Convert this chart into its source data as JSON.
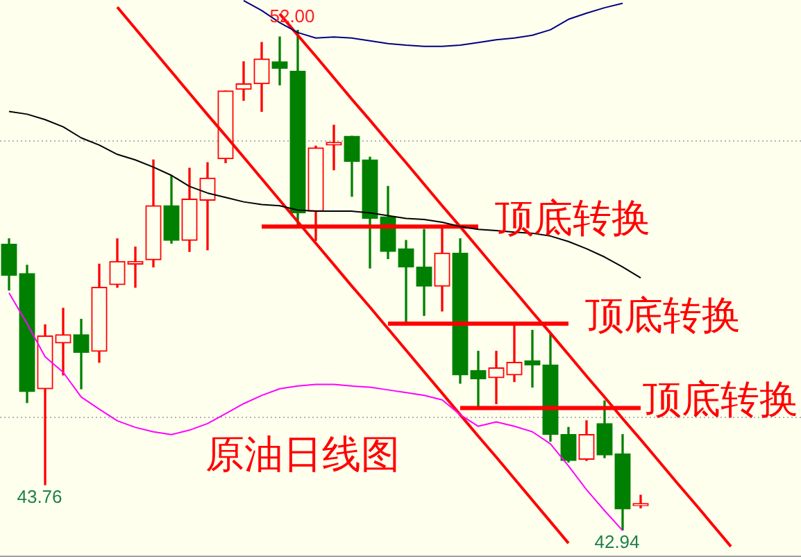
{
  "chart_data": {
    "type": "candlestick",
    "title": "原油日线图",
    "categories": [
      null,
      null,
      null,
      null,
      null,
      null,
      null,
      null,
      null,
      null,
      null,
      null,
      null,
      null,
      null,
      null,
      null,
      null,
      null,
      null,
      null,
      null,
      null,
      null,
      null,
      null,
      null,
      null,
      null,
      null,
      null,
      null,
      null,
      null,
      null,
      null,
      null,
      null,
      null,
      null,
      null,
      null,
      null,
      null
    ],
    "ohlc": [
      [
        48.12,
        48.22,
        47.29,
        47.56
      ],
      [
        47.59,
        47.74,
        45.25,
        45.45
      ],
      [
        45.5,
        46.66,
        43.76,
        46.46
      ],
      [
        46.33,
        46.96,
        45.75,
        46.48
      ],
      [
        46.48,
        46.76,
        45.5,
        46.16
      ],
      [
        46.18,
        47.76,
        45.98,
        47.34
      ],
      [
        47.39,
        48.22,
        47.34,
        47.81
      ],
      [
        47.76,
        48.07,
        47.34,
        47.81
      ],
      [
        47.84,
        49.65,
        47.71,
        48.82
      ],
      [
        48.82,
        49.37,
        48.14,
        48.19
      ],
      [
        48.19,
        49.5,
        47.99,
        48.94
      ],
      [
        48.92,
        49.6,
        48.02,
        49.32
      ],
      [
        49.67,
        50.9,
        49.6,
        50.9
      ],
      [
        50.93,
        51.43,
        50.73,
        51.03
      ],
      [
        51.03,
        51.78,
        50.53,
        51.48
      ],
      [
        51.43,
        51.88,
        51.01,
        51.31
      ],
      [
        51.26,
        52.0,
        48.44,
        48.69
      ],
      [
        48.72,
        49.9,
        48.19,
        49.87
      ],
      [
        49.92,
        50.28,
        49.47,
        49.97
      ],
      [
        50.08,
        50.08,
        48.99,
        49.62
      ],
      [
        49.65,
        49.7,
        47.69,
        48.59
      ],
      [
        48.62,
        49.17,
        47.86,
        47.99
      ],
      [
        48.04,
        48.19,
        46.71,
        47.71
      ],
      [
        47.71,
        48.39,
        46.83,
        47.36
      ],
      [
        47.36,
        48.44,
        46.91,
        47.96
      ],
      [
        47.96,
        48.22,
        45.6,
        45.75
      ],
      [
        45.83,
        46.18,
        45.18,
        45.68
      ],
      [
        45.7,
        46.18,
        45.23,
        45.88
      ],
      [
        45.75,
        46.68,
        45.63,
        45.98
      ],
      [
        46.01,
        46.56,
        45.53,
        45.93
      ],
      [
        45.93,
        46.48,
        44.55,
        44.67
      ],
      [
        44.67,
        44.8,
        44.17,
        44.2
      ],
      [
        44.22,
        44.92,
        44.2,
        44.67
      ],
      [
        44.87,
        45.28,
        44.25,
        44.3
      ],
      [
        44.32,
        44.67,
        42.94,
        43.32
      ],
      [
        43.38,
        43.57,
        43.34,
        43.42
      ],
      null,
      null,
      null,
      null,
      null,
      null,
      null,
      null
    ],
    "colors": [
      "#008000",
      "#008000",
      "#ff0000",
      "#ff0000",
      "#008000",
      "#ff0000",
      "#ff0000",
      "#ff0000",
      "#ff0000",
      "#008000",
      "#ff0000",
      "#ff0000",
      "#ff0000",
      "#ff0000",
      "#ff0000",
      "#008000",
      "#008000",
      "#ff0000",
      "#ff0000",
      "#008000",
      "#008000",
      "#008000",
      "#008000",
      "#008000",
      "#ff0000",
      "#008000",
      "#008000",
      "#ff0000",
      "#ff0000",
      "#008000",
      "#008000",
      "#008000",
      "#ff0000",
      "#008000",
      "#008000",
      "#ff0000",
      null,
      null,
      null,
      null,
      null,
      null,
      null,
      null
    ],
    "series": [
      {
        "type": "line",
        "color": "#000000",
        "values": [
          50.53,
          50.48,
          50.38,
          50.25,
          50.05,
          49.92,
          49.75,
          49.65,
          49.52,
          49.37,
          49.17,
          49.05,
          48.97,
          48.89,
          48.84,
          48.82,
          48.74,
          48.72,
          48.72,
          48.72,
          48.69,
          48.64,
          48.59,
          48.57,
          48.52,
          48.44,
          48.39,
          48.37,
          48.34,
          48.32,
          48.27,
          48.17,
          48.04,
          47.89,
          47.71,
          47.51,
          null,
          null,
          null,
          null,
          null,
          null,
          null,
          null
        ]
      },
      {
        "type": "line",
        "color": "#000080",
        "values": [
          null,
          null,
          null,
          null,
          null,
          null,
          null,
          null,
          null,
          null,
          null,
          null,
          null,
          52.54,
          52.36,
          52.14,
          51.96,
          51.86,
          51.88,
          51.86,
          51.81,
          51.76,
          51.73,
          51.71,
          51.71,
          51.73,
          51.78,
          51.83,
          51.86,
          51.91,
          52.01,
          52.2,
          52.31,
          52.41,
          52.49,
          null,
          null,
          null,
          null,
          null,
          null,
          null,
          null,
          null
        ]
      },
      {
        "type": "line",
        "color": "#ff00ff",
        "values": [
          47.24,
          46.68,
          46.08,
          45.8,
          45.35,
          45.13,
          44.92,
          44.8,
          44.72,
          44.67,
          44.75,
          44.87,
          45.05,
          45.23,
          45.38,
          45.5,
          45.55,
          45.58,
          45.58,
          45.55,
          45.53,
          45.48,
          45.43,
          45.38,
          45.3,
          45.03,
          44.82,
          44.9,
          44.82,
          44.72,
          44.5,
          44.1,
          43.67,
          43.29,
          42.93,
          null,
          null,
          null,
          null,
          null,
          null,
          null,
          null,
          null
        ]
      },
      {
        "type": "line",
        "color": "#ff0000",
        "values": [
          null,
          null,
          null,
          null,
          null,
          null,
          52.42,
          52.03,
          51.64,
          51.25,
          50.86,
          50.47,
          50.09,
          49.7,
          49.31,
          48.92,
          48.53,
          48.14,
          47.75,
          47.36,
          46.98,
          46.59,
          46.2,
          45.81,
          45.42,
          45.03,
          44.64,
          44.26,
          43.87,
          43.48,
          43.09,
          42.7,
          null,
          null,
          null,
          null,
          null,
          null,
          null,
          null,
          null,
          null,
          null,
          null
        ]
      },
      {
        "type": "line",
        "color": "#ff0000",
        "values": [
          null,
          null,
          null,
          null,
          null,
          null,
          null,
          null,
          null,
          null,
          null,
          null,
          null,
          null,
          null,
          52.3,
          51.91,
          51.53,
          51.14,
          50.75,
          50.37,
          49.98,
          49.6,
          49.21,
          48.82,
          48.44,
          48.05,
          47.66,
          47.28,
          46.89,
          46.51,
          46.12,
          45.73,
          45.35,
          44.96,
          44.58,
          44.19,
          43.8,
          43.42,
          43.03,
          42.64,
          null,
          null,
          null
        ]
      },
      {
        "type": "line",
        "name": "顶底转换",
        "color": "#ff0000",
        "values": [
          null,
          null,
          null,
          null,
          null,
          null,
          null,
          null,
          null,
          null,
          null,
          null,
          null,
          null,
          48.44,
          48.44,
          48.44,
          48.44,
          48.44,
          48.44,
          48.44,
          48.44,
          48.44,
          48.44,
          48.44,
          48.44,
          48.44,
          null,
          null,
          null,
          null,
          null,
          null,
          null,
          null,
          null,
          null,
          null,
          null,
          null,
          null,
          null,
          null,
          null
        ]
      },
      {
        "type": "line",
        "name": "顶底转换",
        "color": "#ff0000",
        "values": [
          null,
          null,
          null,
          null,
          null,
          null,
          null,
          null,
          null,
          null,
          null,
          null,
          null,
          null,
          null,
          null,
          null,
          null,
          null,
          null,
          null,
          46.68,
          46.68,
          46.68,
          46.68,
          46.68,
          46.68,
          46.68,
          46.68,
          46.68,
          46.68,
          46.68,
          null,
          null,
          null,
          null,
          null,
          null,
          null,
          null,
          null,
          null,
          null,
          null
        ]
      },
      {
        "type": "line",
        "name": "顶底转换",
        "color": "#ff0000",
        "values": [
          null,
          null,
          null,
          null,
          null,
          null,
          null,
          null,
          null,
          null,
          null,
          null,
          null,
          null,
          null,
          null,
          null,
          null,
          null,
          null,
          null,
          null,
          null,
          null,
          null,
          45.15,
          45.15,
          45.15,
          45.15,
          45.15,
          45.15,
          45.15,
          45.15,
          45.15,
          45.15,
          45.15,
          null,
          null,
          null,
          null,
          null,
          null,
          null,
          null
        ]
      }
    ],
    "ref_lines": [
      {
        "axis": "y",
        "value": 50,
        "color": "#b4b4b4",
        "line_style": "dotted"
      },
      {
        "axis": "y",
        "value": 45,
        "color": "#b4b4b4",
        "line_style": "dotted"
      }
    ],
    "annotations": [
      {
        "text": "52.00",
        "y": 52.0
      },
      {
        "text": "43.76",
        "y": 43.76
      },
      {
        "text": "42.94",
        "y": 42.94
      }
    ],
    "ylim": [
      42.5,
      52.55
    ],
    "tick_labels": false,
    "legend": false,
    "marker": "none"
  }
}
